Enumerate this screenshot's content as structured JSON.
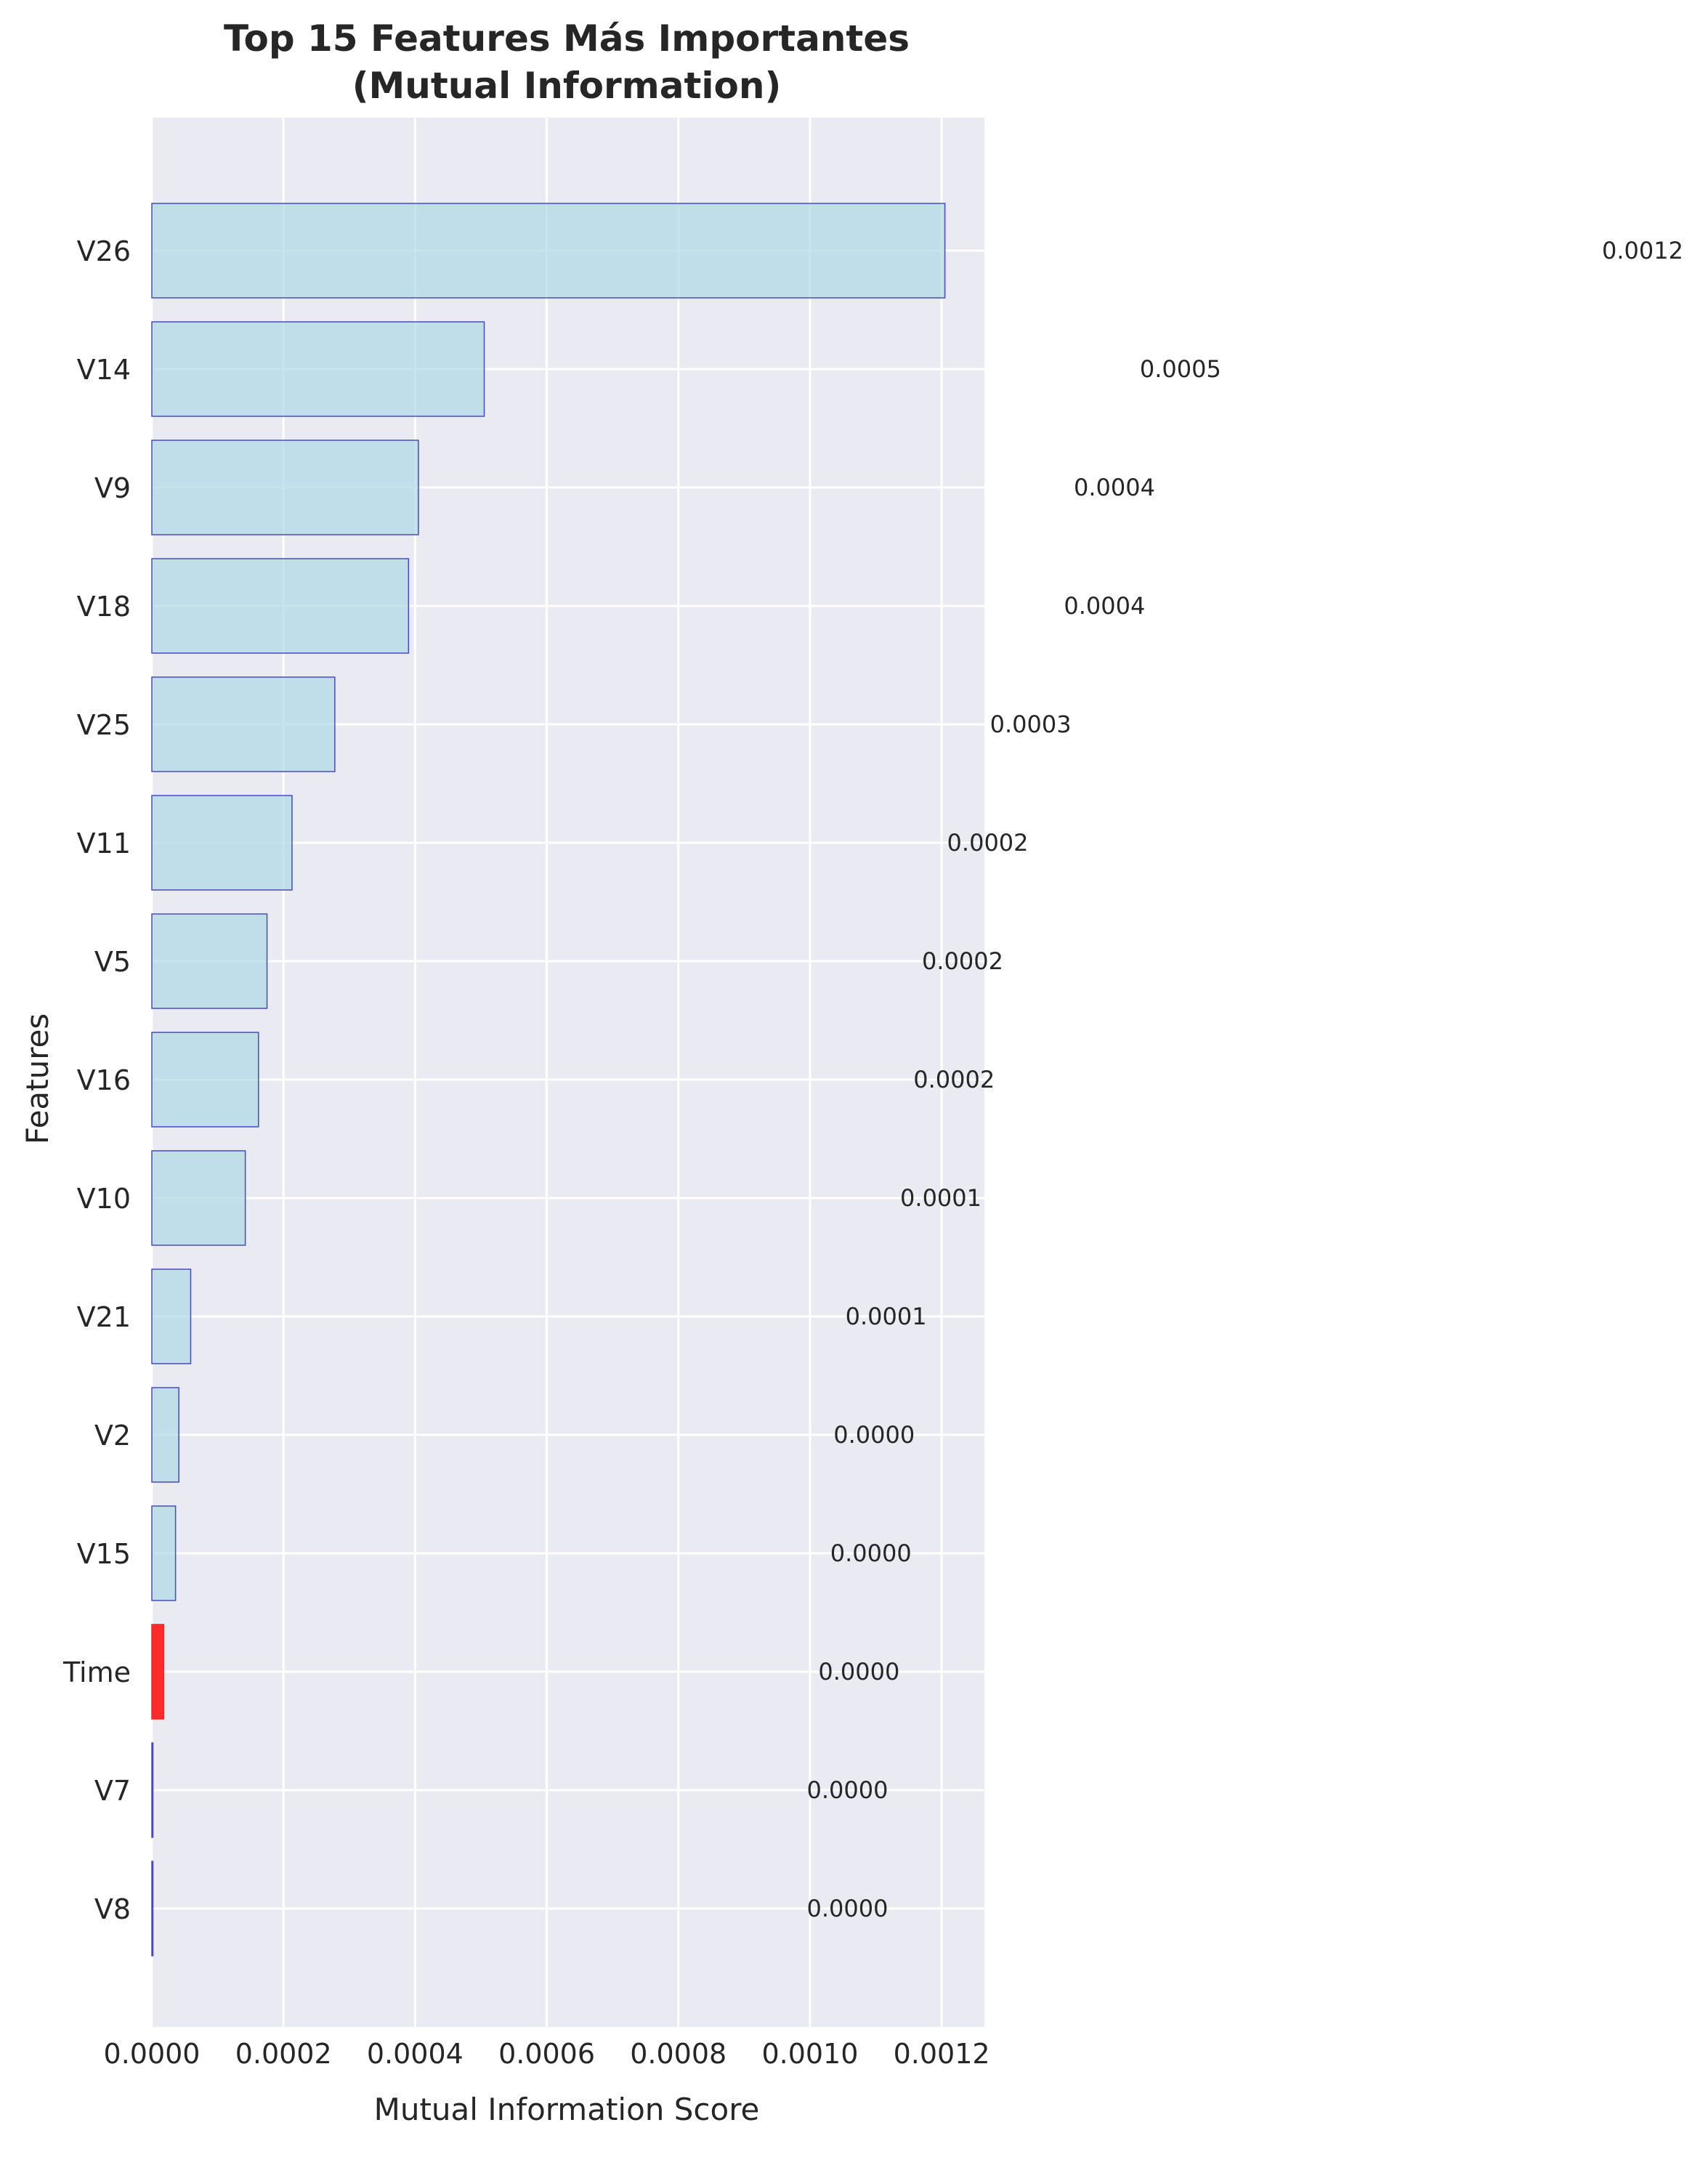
{
  "chart_data": {
    "type": "bar",
    "orientation": "horizontal",
    "title": "Top 15 Features Más Importantes",
    "subtitle": "(Mutual Information)",
    "xlabel": "Mutual Information Score",
    "ylabel": "Features",
    "xlim": [
      0,
      0.001265
    ],
    "x_ticks": [
      0,
      0.0002,
      0.0004,
      0.0006,
      0.0008,
      0.001,
      0.0012
    ],
    "x_tick_labels": [
      "0.0000",
      "0.0002",
      "0.0004",
      "0.0006",
      "0.0008",
      "0.0010",
      "0.0012"
    ],
    "grid": true,
    "categories": [
      "V26",
      "V14",
      "V9",
      "V18",
      "V25",
      "V11",
      "V5",
      "V16",
      "V10",
      "V21",
      "V2",
      "V15",
      "Time",
      "V7",
      "V8"
    ],
    "values": [
      0.001205,
      0.000505,
      0.000405,
      0.00039,
      0.000278,
      0.000213,
      0.000175,
      0.000162,
      0.000142,
      5.9e-05,
      4.1e-05,
      3.6e-05,
      1.8e-05,
      5e-07,
      5e-07
    ],
    "data_labels": [
      "0.0012",
      "0.0005",
      "0.0004",
      "0.0004",
      "0.0003",
      "0.0002",
      "0.0002",
      "0.0002",
      "0.0001",
      "0.0001",
      "0.0000",
      "0.0000",
      "0.0000",
      "0.0000",
      "0.0000"
    ],
    "highlight": {
      "category": "Time",
      "color": "#ff2020"
    },
    "colors": {
      "bar_fill": "#add8e6",
      "bar_edge": "#4a4aba",
      "background": "#eaeaf2",
      "grid": "#ffffff"
    }
  }
}
